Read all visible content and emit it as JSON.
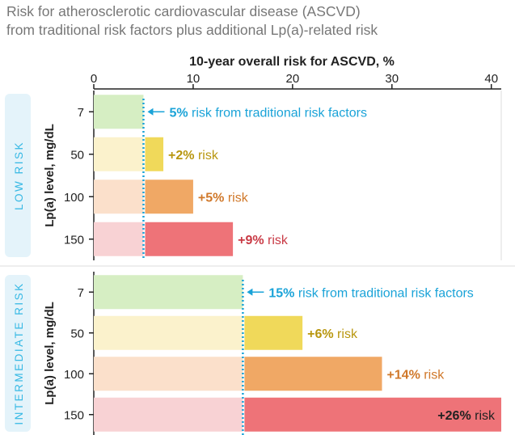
{
  "chart_data": {
    "type": "bar",
    "stacked": true,
    "title": "Risk for atherosclerotic cardiovascular disease (ASCVD)",
    "subtitle": "from traditional risk factors plus additional Lp(a)-related risk",
    "xlabel": "10-year overall risk for ASCVD, %",
    "ylabel": "Lp(a) level, mg/dL",
    "xlim": [
      0,
      41
    ],
    "xticks": [
      "0",
      "10",
      "20",
      "30",
      "40"
    ],
    "categories": [
      "7",
      "50",
      "100",
      "150"
    ],
    "grid": false,
    "panels": [
      {
        "name": "LOW RISK",
        "baseline": 5,
        "baseline_label_value": "5%",
        "baseline_label_text": " risk from traditional risk factors",
        "base_values": [
          5,
          5,
          5,
          5
        ],
        "additional": [
          0,
          2,
          5,
          9
        ],
        "labels": [
          {
            "value": "",
            "text": ""
          },
          {
            "value": "+2%",
            "text": " risk"
          },
          {
            "value": "+5%",
            "text": " risk"
          },
          {
            "value": "+9%",
            "text": " risk"
          }
        ]
      },
      {
        "name": "INTERMEDIATE RISK",
        "baseline": 15,
        "baseline_label_value": "15%",
        "baseline_label_text": " risk from traditional risk factors",
        "base_values": [
          15,
          15,
          15,
          15
        ],
        "additional": [
          0,
          6,
          14,
          26
        ],
        "labels": [
          {
            "value": "",
            "text": ""
          },
          {
            "value": "+6%",
            "text": " risk"
          },
          {
            "value": "+14%",
            "text": " risk"
          },
          {
            "value": "+26%",
            "text": " risk"
          }
        ]
      }
    ],
    "colors": {
      "base": [
        "#d6eec3",
        "#fbf2cc",
        "#fbe0cb",
        "#f8d2d4"
      ],
      "additional": [
        "#d6eec3",
        "#f0d95a",
        "#f0a865",
        "#ee7378"
      ],
      "label": [
        "#1aa3d8",
        "#b8960e",
        "#d0782a",
        "#c93a45"
      ],
      "baseline": "#1aa3d8",
      "panel_label": "#35b8e4",
      "panel_bg": "#e4f3fa",
      "axis": "#222222"
    }
  }
}
